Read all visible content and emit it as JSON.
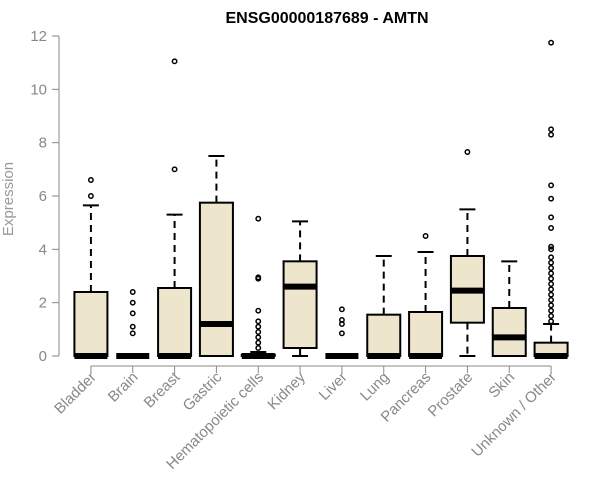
{
  "chart_data": {
    "type": "box",
    "title": "ENSG00000187689 - AMTN",
    "ylabel": "Expression",
    "xlabel": "",
    "ylim": [
      0,
      12
    ],
    "yticks": [
      0,
      2,
      4,
      6,
      8,
      10,
      12
    ],
    "categories": [
      "Bladder",
      "Brain",
      "Breast",
      "Gastric",
      "Hematopoietic cells",
      "Kidney",
      "Liver",
      "Lung",
      "Pancreas",
      "Prostate",
      "Skin",
      "Unknown / Other"
    ],
    "boxes": [
      {
        "q1": 0,
        "median": 0,
        "q3": 2.4,
        "whisker_low": 0,
        "whisker_high": 5.65,
        "outliers": [
          6.0,
          6.6
        ]
      },
      {
        "q1": 0,
        "median": 0,
        "q3": 0,
        "whisker_low": 0,
        "whisker_high": 0,
        "outliers": [
          0.85,
          1.1,
          1.6,
          2.0,
          2.4
        ]
      },
      {
        "q1": 0,
        "median": 0,
        "q3": 2.55,
        "whisker_low": 0,
        "whisker_high": 5.3,
        "outliers": [
          7.0,
          11.05
        ]
      },
      {
        "q1": 0,
        "median": 1.2,
        "q3": 5.75,
        "whisker_low": 0,
        "whisker_high": 7.5,
        "outliers": []
      },
      {
        "q1": 0,
        "median": 0,
        "q3": 0.05,
        "whisker_low": 0,
        "whisker_high": 0.15,
        "outliers": [
          0.3,
          0.5,
          0.7,
          0.9,
          1.1,
          1.3,
          1.7,
          2.9,
          2.95,
          5.15
        ]
      },
      {
        "q1": 0.3,
        "median": 2.6,
        "q3": 3.55,
        "whisker_low": 0,
        "whisker_high": 5.05,
        "outliers": []
      },
      {
        "q1": 0,
        "median": 0,
        "q3": 0,
        "whisker_low": 0,
        "whisker_high": 0,
        "outliers": [
          0.85,
          1.2,
          1.35,
          1.75
        ]
      },
      {
        "q1": 0,
        "median": 0,
        "q3": 1.55,
        "whisker_low": 0,
        "whisker_high": 3.75,
        "outliers": []
      },
      {
        "q1": 0,
        "median": 0,
        "q3": 1.65,
        "whisker_low": 0,
        "whisker_high": 3.9,
        "outliers": [
          4.5
        ]
      },
      {
        "q1": 1.25,
        "median": 2.45,
        "q3": 3.75,
        "whisker_low": 0,
        "whisker_high": 5.5,
        "outliers": [
          7.65
        ]
      },
      {
        "q1": 0,
        "median": 0.7,
        "q3": 1.8,
        "whisker_low": 0,
        "whisker_high": 3.55,
        "outliers": []
      },
      {
        "q1": 0,
        "median": 0,
        "q3": 0.5,
        "whisker_low": 0,
        "whisker_high": 1.2,
        "outliers": [
          1.3,
          1.5,
          1.7,
          1.9,
          2.1,
          2.3,
          2.5,
          2.7,
          2.9,
          3.1,
          3.3,
          3.5,
          3.7,
          4.0,
          4.1,
          4.8,
          5.2,
          5.9,
          6.4,
          8.3,
          8.5,
          11.75
        ]
      }
    ],
    "colors": {
      "box_fill": "#ede6cc",
      "box_stroke": "#000000",
      "axis": "#888888"
    },
    "grid": false,
    "legend": "none"
  }
}
